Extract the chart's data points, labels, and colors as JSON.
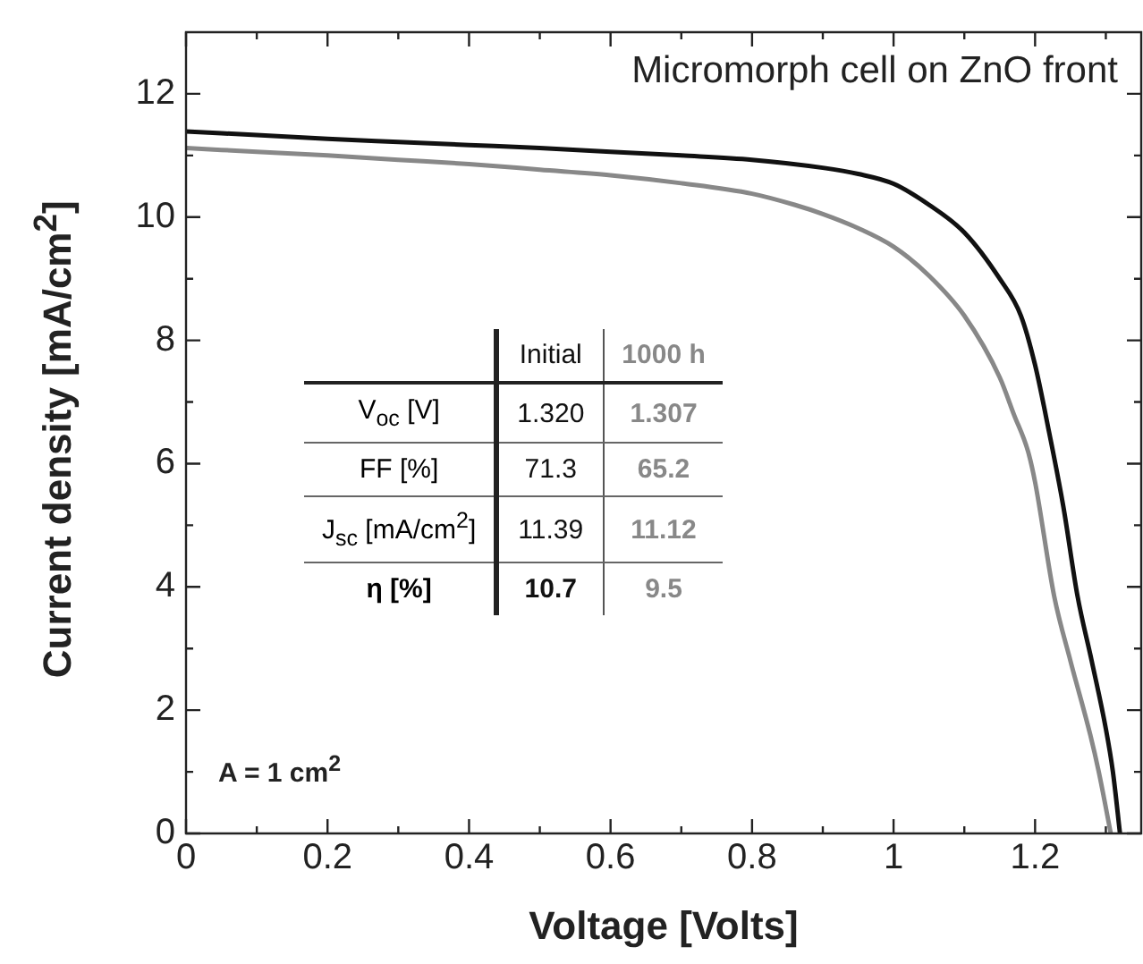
{
  "chart_data": {
    "type": "line",
    "title": "Micromorph cell on ZnO front",
    "xlabel": "Voltage [Volts]",
    "ylabel": "Current density [mA/cm$^{2}$]",
    "series": [
      {
        "name": "Initial",
        "color": "#111111",
        "x": [
          0,
          0.1,
          0.2,
          0.3,
          0.4,
          0.5,
          0.6,
          0.7,
          0.8,
          0.9,
          0.95,
          1.0,
          1.05,
          1.1,
          1.15,
          1.18,
          1.2,
          1.22,
          1.24,
          1.26,
          1.28,
          1.3,
          1.31,
          1.32
        ],
        "values": [
          11.39,
          11.33,
          11.27,
          11.22,
          11.17,
          11.12,
          11.06,
          11.0,
          10.93,
          10.8,
          10.7,
          10.54,
          10.2,
          9.75,
          9.0,
          8.4,
          7.6,
          6.5,
          5.3,
          3.85,
          2.8,
          1.7,
          1.0,
          0
        ]
      },
      {
        "name": "1000 h",
        "color": "#888888",
        "x": [
          0,
          0.1,
          0.2,
          0.3,
          0.4,
          0.5,
          0.6,
          0.7,
          0.8,
          0.86,
          0.9,
          0.95,
          1.0,
          1.05,
          1.1,
          1.15,
          1.17,
          1.19,
          1.2,
          1.227,
          1.25,
          1.278,
          1.29,
          1.307
        ],
        "values": [
          11.12,
          11.06,
          11.0,
          10.93,
          10.86,
          10.77,
          10.68,
          10.55,
          10.38,
          10.2,
          10.05,
          9.82,
          9.52,
          9.05,
          8.4,
          7.4,
          6.8,
          6.2,
          5.7,
          3.85,
          2.8,
          1.6,
          1.0,
          0
        ]
      }
    ],
    "xlim": [
      0,
      1.35
    ],
    "xticks": [
      0,
      {
        "value": 0.1,
        "label": null
      },
      0.2,
      {
        "value": 0.3,
        "label": null
      },
      0.4,
      {
        "value": 0.5,
        "label": null
      },
      0.6,
      {
        "value": 0.7,
        "label": null
      },
      0.8,
      {
        "value": 0.9,
        "label": null
      },
      1,
      {
        "value": 1.1,
        "label": null
      },
      1.2,
      {
        "value": 1.3,
        "label": null
      }
    ],
    "ylim": [
      0,
      13
    ],
    "yticks": [
      0,
      {
        "value": 1,
        "label": null
      },
      2,
      {
        "value": 3,
        "label": null
      },
      4,
      {
        "value": 5,
        "label": null
      },
      6,
      {
        "value": 7,
        "label": null
      },
      8,
      {
        "value": 9,
        "label": null
      },
      10,
      {
        "value": 11,
        "label": null
      },
      12
    ],
    "annotations": [
      "A = 1 cm$^{2}$",
      "V$_{oc}$ [V]",
      "1.320",
      "1.307",
      "FF [%]",
      "71.3",
      "65.2",
      "J$_{sc}$ [mA/cm$^{2}$]",
      "11.39",
      "11.12",
      "η [%]",
      "10.7",
      "9.5"
    ],
    "legend": false,
    "grid": false,
    "marker": "none",
    "line_style": "solid"
  }
}
